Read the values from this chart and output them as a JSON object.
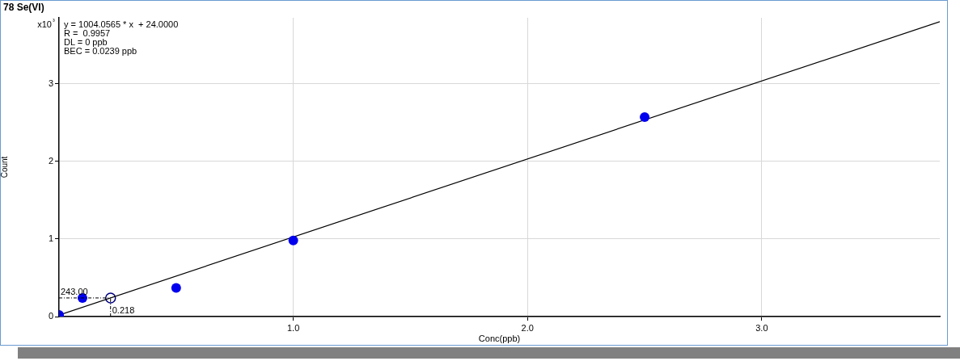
{
  "chart_data": {
    "type": "scatter",
    "title": "78 Se(VI)",
    "xlabel": "Conc(ppb)",
    "ylabel": "Count",
    "annotations": [
      "x10³",
      "y = 1004.0565 * x  + 24.0000",
      "R =  0.9957",
      "DL = 0 ppb",
      "BEC = 0.0239 ppb",
      {
        "text": "243.00",
        "x": 0.22,
        "y": 0.24
      },
      {
        "text": "0.218",
        "x": 0.22,
        "y": 0.24
      }
    ],
    "series": [
      {
        "color": "#0000ee",
        "marker": "circle",
        "x": [
          0,
          0.1,
          0.5,
          1.0,
          2.5
        ],
        "values": [
          0.02,
          0.24,
          0.37,
          0.98,
          2.57
        ]
      },
      {
        "type": "line",
        "color": "#000000",
        "marker": "none",
        "x": [
          0,
          3.76
        ],
        "values": [
          0.02,
          3.8
        ]
      },
      {
        "color": "#000080",
        "marker": "circle",
        "x": [
          0.22
        ],
        "values": [
          0.24
        ]
      }
    ],
    "xlim": [
      0,
      3.76
    ],
    "ylim": [
      0,
      3.85
    ],
    "xticks": [
      {
        "value": 1,
        "label": "1.0"
      },
      {
        "value": 2,
        "label": "2.0"
      },
      {
        "value": 3,
        "label": "3.0"
      }
    ],
    "yticks": [
      0,
      1,
      2,
      3
    ],
    "grid": true,
    "legend": false
  }
}
